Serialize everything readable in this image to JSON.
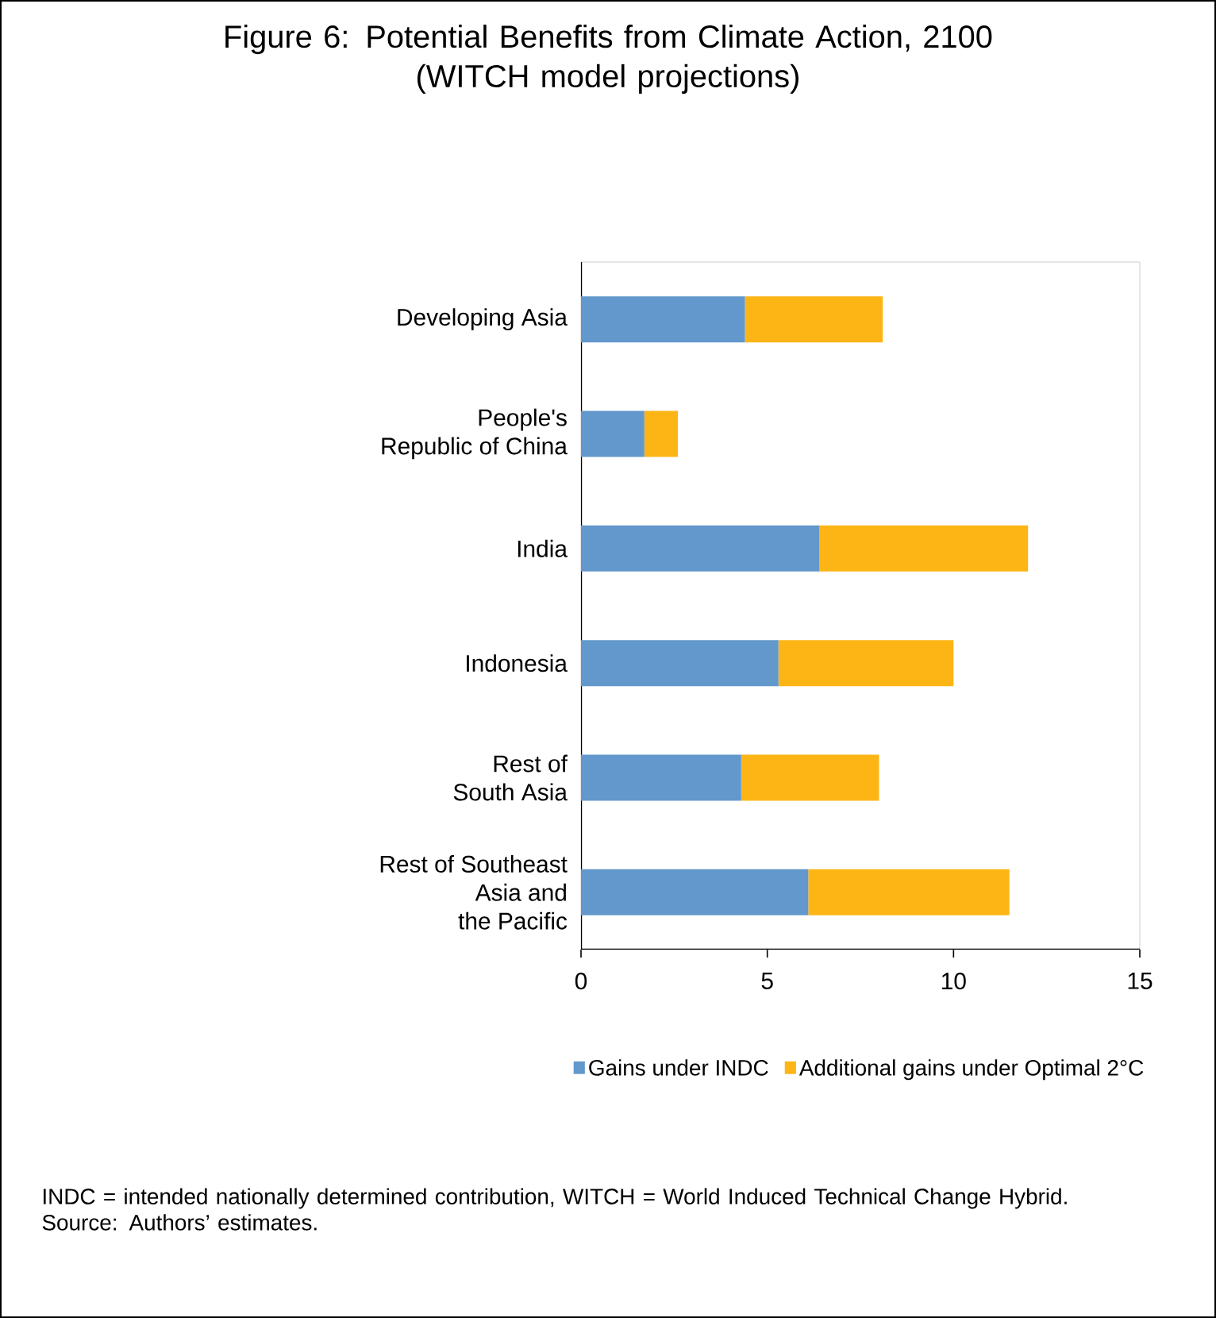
{
  "chart_data": {
    "type": "bar",
    "orientation": "horizontal",
    "stacked": true,
    "title": "Figure 6: Potential Benefits from Climate Action, 2100",
    "subtitle": "(WITCH model projections)",
    "categories": [
      "Developing Asia",
      "People's Republic of China",
      "India",
      "Indonesia",
      "Rest of South Asia",
      "Rest of Southeast Asia and the Pacific"
    ],
    "series": [
      {
        "name": "Gains under INDC",
        "color": "#6298cb",
        "values": [
          4.4,
          1.7,
          6.4,
          5.3,
          4.3,
          6.1
        ]
      },
      {
        "name": "Additional gains under Optimal 2°C",
        "color": "#fdb515",
        "values": [
          3.7,
          0.9,
          5.6,
          4.7,
          3.7,
          5.4
        ]
      }
    ],
    "xlim": [
      0,
      15
    ],
    "xticks": [
      0,
      5,
      10,
      15
    ],
    "legend": "bottom",
    "annotations": [
      "INDC = intended nationally determined contribution, WITCH = World Induced Technical Change Hybrid.",
      "Source: Authors’ estimates."
    ]
  }
}
